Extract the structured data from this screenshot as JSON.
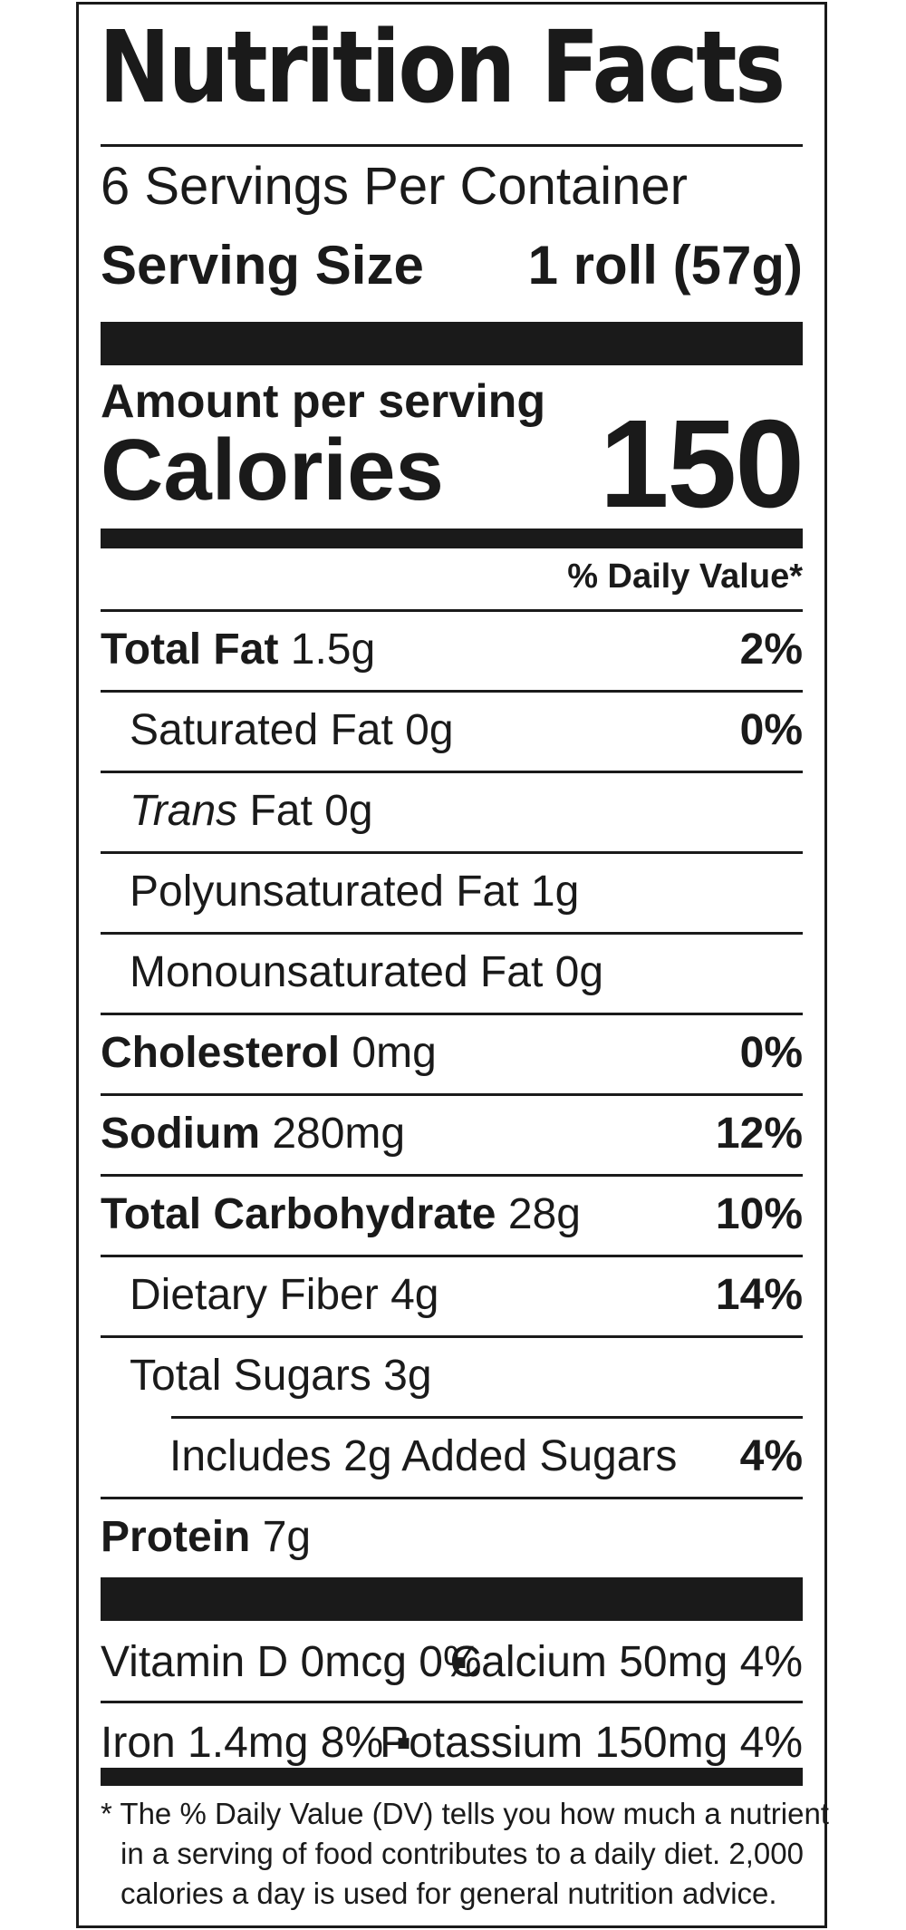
{
  "title": "Nutrition Facts",
  "servings_per_container": "6 Servings Per Container",
  "serving_size_label": "Serving Size",
  "serving_size_value": "1 roll (57g)",
  "amount_per_serving": "Amount per serving",
  "calories_label": "Calories",
  "calories_value": "150",
  "daily_value_header": "% Daily Value*",
  "nutrients": [
    {
      "name": "Total Fat",
      "amount": " 1.5g",
      "dv": "2%"
    },
    {
      "name": "Saturated Fat 0g",
      "dv": "0%"
    },
    {
      "name_italic": "Trans",
      "name_rest": " Fat 0g"
    },
    {
      "name": "Polyunsaturated Fat 1g"
    },
    {
      "name": "Monounsaturated Fat 0g"
    },
    {
      "name": "Cholesterol",
      "amount": " 0mg",
      "dv": "0%"
    },
    {
      "name": "Sodium",
      "amount": " 280mg",
      "dv": "12%"
    },
    {
      "name": "Total Carbohydrate",
      "amount": " 28g",
      "dv": "10%"
    },
    {
      "name": "Dietary Fiber 4g",
      "dv": "14%"
    },
    {
      "name": "Total Sugars 3g"
    },
    {
      "name": "Includes 2g Added Sugars",
      "dv": "4%"
    },
    {
      "name": "Protein",
      "amount": " 7g"
    }
  ],
  "vitamins": [
    {
      "left": "Vitamin D 0mcg 0%",
      "dot": "▪",
      "right": "Calcium 50mg 4%"
    },
    {
      "left": "Iron 1.4mg 8%",
      "dot": "▪",
      "right": "Potassium 150mg 4%"
    }
  ],
  "footnote": [
    "* The % Daily Value (DV) tells you how much a nutrient",
    "in a serving of food contributes to a daily diet. 2,000",
    "calories a day is used for general nutrition advice."
  ]
}
